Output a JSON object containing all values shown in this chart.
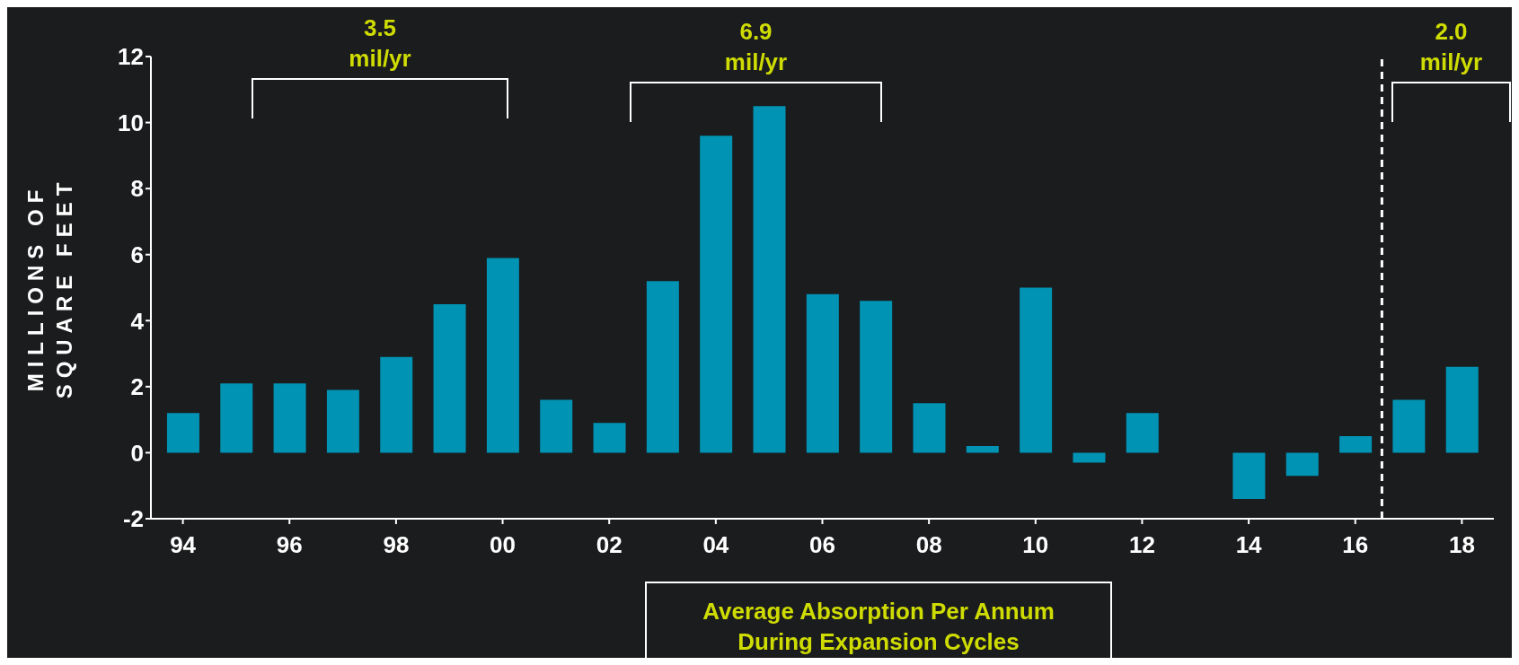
{
  "chart_data": {
    "type": "bar",
    "ylabel": "MILLIONS OF SQUARE FEET",
    "x": [
      1994,
      1995,
      1996,
      1997,
      1998,
      1999,
      2000,
      2001,
      2002,
      2003,
      2004,
      2005,
      2006,
      2007,
      2008,
      2009,
      2010,
      2011,
      2012,
      2013,
      2014,
      2015,
      2016,
      2017,
      2018
    ],
    "values": [
      1.2,
      2.1,
      2.1,
      1.9,
      2.9,
      4.5,
      5.9,
      1.6,
      0.9,
      5.2,
      9.6,
      10.5,
      4.8,
      4.6,
      1.5,
      0.2,
      5.0,
      -0.3,
      1.2,
      0,
      -1.4,
      -0.7,
      0.5,
      1.6,
      2.6
    ],
    "color": "#0093b4",
    "xlim": [
      1993.4,
      2018.6
    ],
    "xticks": [
      {
        "value": 1994,
        "label": "94"
      },
      {
        "value": 1996,
        "label": "96"
      },
      {
        "value": 1998,
        "label": "98"
      },
      {
        "value": 2000,
        "label": "00"
      },
      {
        "value": 2002,
        "label": "02"
      },
      {
        "value": 2004,
        "label": "04"
      },
      {
        "value": 2006,
        "label": "06"
      },
      {
        "value": 2008,
        "label": "08"
      },
      {
        "value": 2010,
        "label": "10"
      },
      {
        "value": 2012,
        "label": "12"
      },
      {
        "value": 2014,
        "label": "14"
      },
      {
        "value": 2016,
        "label": "16"
      },
      {
        "value": 2018,
        "label": "18"
      }
    ],
    "ylim": [
      -2,
      12
    ],
    "yticks": [
      -2,
      0,
      2,
      4,
      6,
      8,
      10,
      12
    ],
    "ref_lines": [
      {
        "axis": "x",
        "value": 2016.5,
        "color": "#ffffff",
        "line_style": "dashed"
      }
    ],
    "annotations": [
      "3.5 mil/yr",
      "6.9 mil/yr",
      "2.0 mil/yr",
      "Average Absorption Per Annum During Expansion Cycles"
    ]
  }
}
